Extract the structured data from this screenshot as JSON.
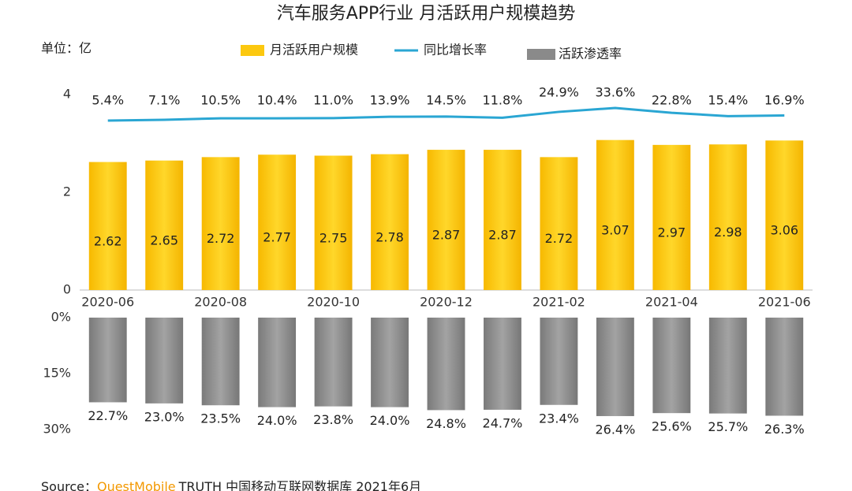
{
  "chart_data": [
    {
      "type": "bar",
      "title": "汽车服务APP行业 月活跃用户规模趋势",
      "unit_label": "单位：亿",
      "categories": [
        "2020-06",
        null,
        "2020-08",
        null,
        "2020-10",
        null,
        "2020-12",
        null,
        "2021-02",
        null,
        "2021-04",
        null,
        "2021-06"
      ],
      "ylim": [
        0,
        4
      ],
      "yticks": [
        0,
        2,
        4
      ],
      "series": [
        {
          "name": "月活跃用户规模",
          "type": "bar",
          "color": "#fcc80f",
          "values": [
            2.62,
            2.65,
            2.72,
            2.77,
            2.75,
            2.78,
            2.87,
            2.87,
            2.72,
            3.07,
            2.97,
            2.98,
            3.06
          ]
        },
        {
          "name": "同比增长率",
          "type": "line",
          "color": "#2aa6d3",
          "values": [
            5.4,
            7.1,
            10.5,
            10.4,
            11.0,
            13.9,
            14.5,
            11.8,
            24.9,
            33.6,
            22.8,
            15.4,
            16.9
          ],
          "value_labels": [
            "5.4%",
            "7.1%",
            "10.5%",
            "10.4%",
            "11.0%",
            "13.9%",
            "14.5%",
            "11.8%",
            "24.9%",
            "33.6%",
            "22.8%",
            "15.4%",
            "16.9%"
          ]
        }
      ]
    },
    {
      "type": "bar",
      "ylim": [
        0,
        30
      ],
      "inverted": true,
      "yticks": [
        {
          "value": 0,
          "label": "0%"
        },
        {
          "value": 15,
          "label": "15%"
        },
        {
          "value": 30,
          "label": "30%"
        }
      ],
      "series": [
        {
          "name": "活跃渗透率",
          "color": "#8a8a8a",
          "values": [
            22.7,
            23.0,
            23.5,
            24.0,
            23.8,
            24.0,
            24.8,
            24.7,
            23.4,
            26.4,
            25.6,
            25.7,
            26.3
          ],
          "value_labels": [
            "22.7%",
            "23.0%",
            "23.5%",
            "24.0%",
            "23.8%",
            "24.0%",
            "24.8%",
            "24.7%",
            "23.4%",
            "26.4%",
            "25.6%",
            "25.7%",
            "26.3%"
          ]
        }
      ]
    }
  ],
  "source": {
    "prefix": "Source：",
    "brand": "QuestMobile",
    "text": "TRUTH 中国移动互联网数据库 2021年6月"
  }
}
